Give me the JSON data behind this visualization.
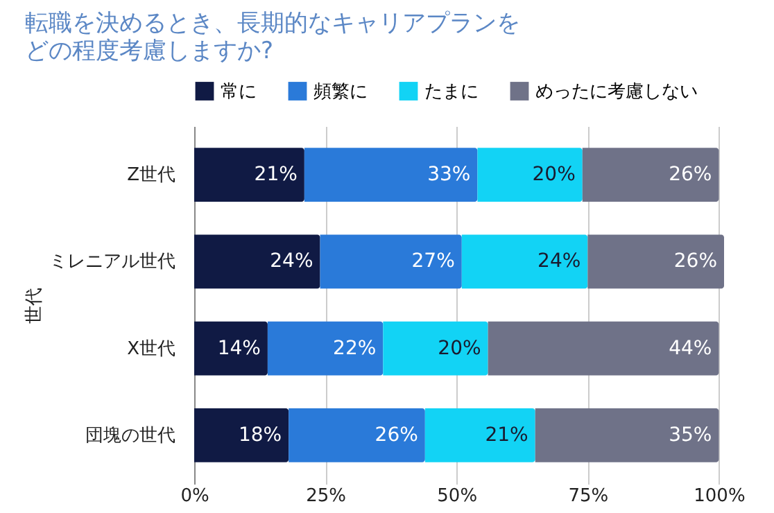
{
  "chart_data": {
    "type": "bar",
    "orientation": "horizontal",
    "stacked": true,
    "title": "転職を決めるとき、長期的なキャリアプランをどの程度考慮しますか?",
    "ylabel": "世代",
    "categories": [
      "Z世代",
      "ミレニアル世代",
      "X世代",
      "団塊の世代"
    ],
    "series": [
      {
        "name": "常に",
        "color": "#101a44",
        "values": [
          21,
          24,
          14,
          18
        ],
        "value_labels": [
          "21%",
          "24%",
          "14%",
          "18%"
        ]
      },
      {
        "name": "頻繁に",
        "color": "#2a7ad9",
        "values": [
          33,
          27,
          22,
          26
        ],
        "value_labels": [
          "33%",
          "27%",
          "22%",
          "26%"
        ]
      },
      {
        "name": "たまに",
        "color": "#12d3f5",
        "values": [
          20,
          24,
          20,
          21
        ],
        "value_labels": [
          "20%",
          "24%",
          "20%",
          "21%"
        ]
      },
      {
        "name": "めったに考慮しない",
        "color": "#6f7288",
        "values": [
          26,
          26,
          44,
          35
        ],
        "value_labels": [
          "26%",
          "26%",
          "44%",
          "35%"
        ]
      }
    ],
    "xlim": [
      0,
      101
    ],
    "xticks": [
      {
        "value": 0,
        "label": "0%"
      },
      {
        "value": 25,
        "label": "25%"
      },
      {
        "value": 50,
        "label": "50%"
      },
      {
        "value": 75,
        "label": "75%"
      },
      {
        "value": 100,
        "label": "100%"
      }
    ],
    "grid": "x",
    "legend": "top"
  }
}
